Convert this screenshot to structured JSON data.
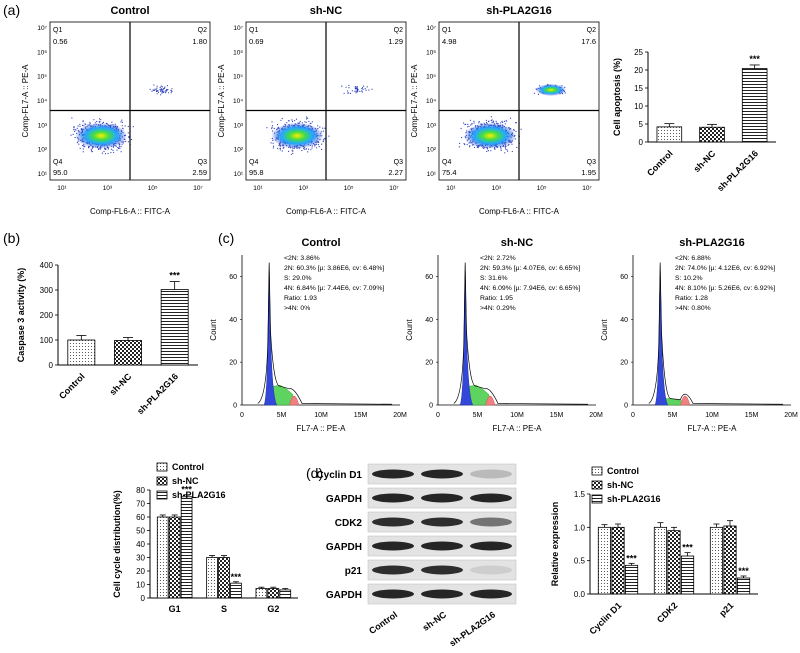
{
  "panels": {
    "a": "(a)",
    "b": "(b)",
    "c": "(c)",
    "d": "(d)"
  },
  "flow_plots": [
    {
      "title": "Control",
      "q1_label": "Q1",
      "q2_label": "Q2",
      "q3_label": "Q3",
      "q4_label": "Q4",
      "q1": "0.56",
      "q2": "1.80",
      "q3": "2.59",
      "q4": "95.0",
      "xlabel": "Comp-FL6-A :: FITC-A",
      "ylabel": "Comp-FL7-A :: PE-A",
      "upper_cluster": 0.4
    },
    {
      "title": "sh-NC",
      "q1_label": "Q1",
      "q2_label": "Q2",
      "q3_label": "Q3",
      "q4_label": "Q4",
      "q1": "0.69",
      "q2": "1.29",
      "q3": "2.27",
      "q4": "95.8",
      "xlabel": "Comp-FL6-A :: FITC-A",
      "ylabel": "Comp-FL7-A :: PE-A",
      "upper_cluster": 0.3
    },
    {
      "title": "sh-PLA2G16",
      "q1_label": "Q1",
      "q2_label": "Q2",
      "q3_label": "Q3",
      "q4_label": "Q4",
      "q1": "4.98",
      "q2": "17.6",
      "q3": "1.95",
      "q4": "75.4",
      "xlabel": "Comp-FL6-A :: FITC-A",
      "ylabel": "Comp-FL7-A :: PE-A",
      "upper_cluster": 1.0
    }
  ],
  "flow_axis_ticks": {
    "x": [
      "10¹",
      "10³",
      "10⁵",
      "10⁷"
    ],
    "y": [
      "10¹",
      "10²",
      "10³",
      "10⁴",
      "10⁵",
      "10⁶",
      "10⁷"
    ]
  },
  "histograms": [
    {
      "title": "Control",
      "lines": [
        "<2N: 3.86%",
        "2N: 60.3%  [µ: 3.86E6, cv: 6.48%]",
        "S: 29.0%",
        "4N: 6.84%  [µ: 7.44E6, cv: 7.09%]",
        "Ratio: 1.93",
        ">4N: 0%"
      ],
      "xlabel": "FL7-A :: PE-A",
      "ylabel": "Count",
      "yticks": [
        "0",
        "20",
        "40",
        "60"
      ],
      "xticks": [
        "0",
        "5M",
        "10M",
        "15M",
        "20M"
      ],
      "s_level": 0.12
    },
    {
      "title": "sh-NC",
      "lines": [
        "<2N: 2.72%",
        "2N: 59.3%  [µ: 4.07E6, cv: 6.65%]",
        "S: 31.6%",
        "4N: 6.09%  [µ: 7.94E6, cv: 6.65%]",
        "Ratio: 1.95",
        ">4N: 0.29%"
      ],
      "xlabel": "FL7-A :: PE-A",
      "ylabel": "Count",
      "yticks": [
        "0",
        "20",
        "40",
        "60"
      ],
      "xticks": [
        "0",
        "5M",
        "10M",
        "15M",
        "20M"
      ],
      "s_level": 0.12
    },
    {
      "title": "sh-PLA2G16",
      "lines": [
        "<2N: 6.88%",
        "2N: 74.0%  [µ: 4.12E6, cv: 6.92%]",
        "S: 10.2%",
        "4N: 8.10%  [µ: 5.26E6, cv: 6.92%]",
        "Ratio: 1.28",
        ">4N: 0.80%"
      ],
      "xlabel": "FL7-A :: PE-A",
      "ylabel": "Count",
      "yticks": [
        "0",
        "20",
        "40",
        "60"
      ],
      "xticks": [
        "0",
        "5M",
        "10M",
        "15M",
        "20M"
      ],
      "s_level": 0.04
    }
  ],
  "western_blot": {
    "rows": [
      {
        "label": "Cyclin D1",
        "bands": [
          0.95,
          0.95,
          0.2
        ]
      },
      {
        "label": "GAPDH",
        "bands": [
          0.95,
          0.95,
          0.95
        ]
      },
      {
        "label": "CDK2",
        "bands": [
          0.9,
          0.9,
          0.55
        ]
      },
      {
        "label": "GAPDH",
        "bands": [
          0.95,
          0.95,
          0.95
        ]
      },
      {
        "label": "p21",
        "bands": [
          0.9,
          0.9,
          0.1
        ]
      },
      {
        "label": "GAPDH",
        "bands": [
          0.95,
          0.95,
          0.95
        ]
      }
    ],
    "lanes": [
      "Control",
      "sh-NC",
      "sh-PLA2G16"
    ]
  },
  "colors": {
    "dark": "#111111",
    "bar_ctrl_fill": "#d8d8d8",
    "bar_nc_fill": "#777777"
  },
  "chart_data": [
    {
      "id": "apoptosis",
      "type": "bar",
      "categories": [
        "Control",
        "sh-NC",
        "sh-PLA2G16"
      ],
      "values": [
        4.2,
        4.1,
        20.4
      ],
      "errors": [
        0.9,
        0.8,
        1.0
      ],
      "ylabel": "Cell apoptosis (%)",
      "ylim": [
        0,
        25
      ],
      "yticks": [
        "0",
        "5",
        "10",
        "15",
        "20",
        "25"
      ],
      "significance": [
        "",
        "",
        "***"
      ]
    },
    {
      "id": "caspase3",
      "type": "bar",
      "categories": [
        "Control",
        "sh-NC",
        "sh-PLA2G16"
      ],
      "values": [
        100,
        98,
        302
      ],
      "errors": [
        18,
        12,
        32
      ],
      "ylabel": "Caspase 3 activity (%)",
      "ylim": [
        0,
        400
      ],
      "yticks": [
        "0",
        "100",
        "200",
        "300",
        "400"
      ],
      "significance": [
        "",
        "",
        "***"
      ]
    },
    {
      "id": "cellcycle",
      "type": "bar",
      "categories": [
        "G1",
        "S",
        "G2"
      ],
      "series": [
        {
          "name": "Control",
          "values": [
            60,
            30,
            7
          ],
          "errors": [
            1.5,
            1.5,
            1
          ]
        },
        {
          "name": "sh-NC",
          "values": [
            60,
            30,
            7
          ],
          "errors": [
            1.5,
            1.5,
            1
          ]
        },
        {
          "name": "sh-PLA2G16",
          "values": [
            75,
            11,
            6
          ],
          "errors": [
            1.5,
            1,
            1
          ]
        }
      ],
      "ylabel": "Cell cycle distribution(%)",
      "ylim": [
        0,
        80
      ],
      "yticks": [
        "0",
        "10",
        "20",
        "30",
        "40",
        "50",
        "60",
        "70",
        "80"
      ],
      "significance": [
        "***",
        "***",
        ""
      ]
    },
    {
      "id": "relexpr",
      "type": "bar",
      "categories": [
        "Cyclin D1",
        "CDK2",
        "p21"
      ],
      "series": [
        {
          "name": "Control",
          "values": [
            1.0,
            1.0,
            1.0
          ],
          "errors": [
            0.04,
            0.07,
            0.05
          ]
        },
        {
          "name": "sh-NC",
          "values": [
            1.0,
            0.95,
            1.02
          ],
          "errors": [
            0.05,
            0.05,
            0.08
          ]
        },
        {
          "name": "sh-PLA2G16",
          "values": [
            0.43,
            0.57,
            0.24
          ],
          "errors": [
            0.03,
            0.05,
            0.03
          ]
        }
      ],
      "ylabel": "Relative expression",
      "ylim": [
        0,
        1.5
      ],
      "yticks": [
        "0.0",
        "0.5",
        "1.0",
        "1.5"
      ],
      "significance": [
        "***",
        "***",
        "***"
      ]
    }
  ]
}
